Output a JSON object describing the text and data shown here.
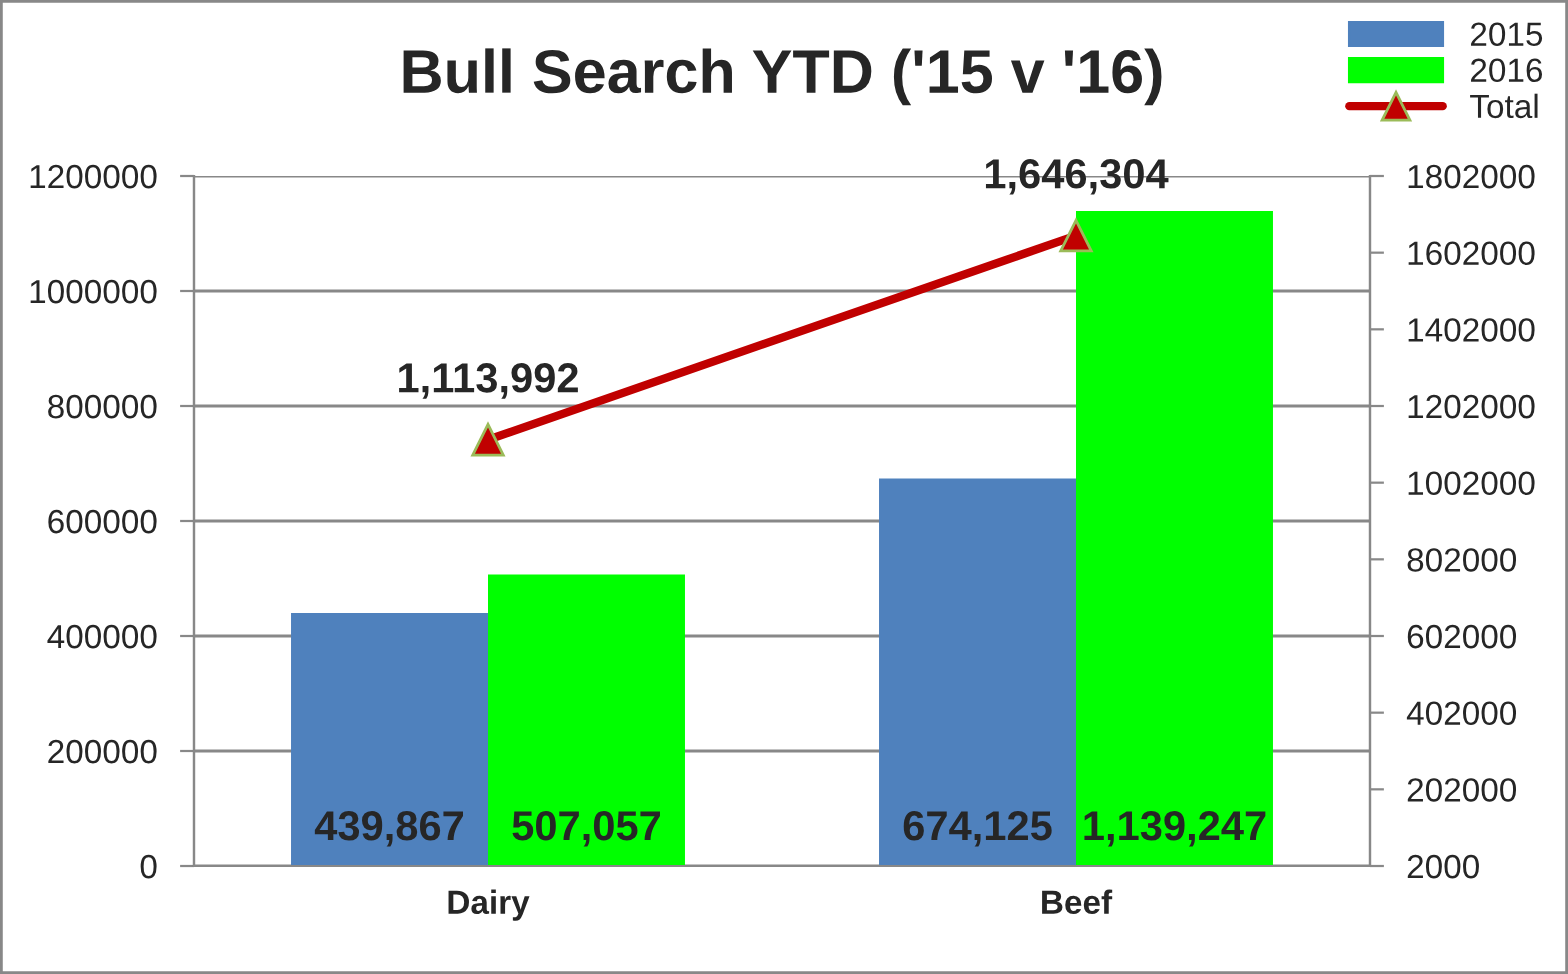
{
  "chart_data": {
    "type": "bar",
    "title": "Bull Search YTD ('15 v '16)",
    "categories": [
      "Dairy",
      "Beef"
    ],
    "series": [
      {
        "name": "2015",
        "color": "#4f81bd",
        "values": [
          439867,
          674125
        ],
        "value_labels": [
          "439,867",
          "674,125"
        ]
      },
      {
        "name": "2016",
        "color": "#00ff00",
        "values": [
          507057,
          1139247
        ],
        "value_labels": [
          "507,057",
          "1,139,247"
        ]
      },
      {
        "name": "Total",
        "type": "line",
        "axis": "y2",
        "color": "#c00000",
        "marker": "triangle",
        "values": [
          1113992,
          1646304
        ],
        "value_labels": [
          "1,113,992",
          "1,646,304"
        ]
      }
    ],
    "ylim": [
      0,
      1200000
    ],
    "yticks": [
      0,
      200000,
      400000,
      600000,
      800000,
      1000000,
      1200000
    ],
    "y2lim": [
      2000,
      1802000
    ],
    "y2ticks": [
      2000,
      202000,
      402000,
      602000,
      802000,
      1002000,
      1202000,
      1402000,
      1602000,
      1802000
    ],
    "grid": "y",
    "legend": "top right"
  }
}
